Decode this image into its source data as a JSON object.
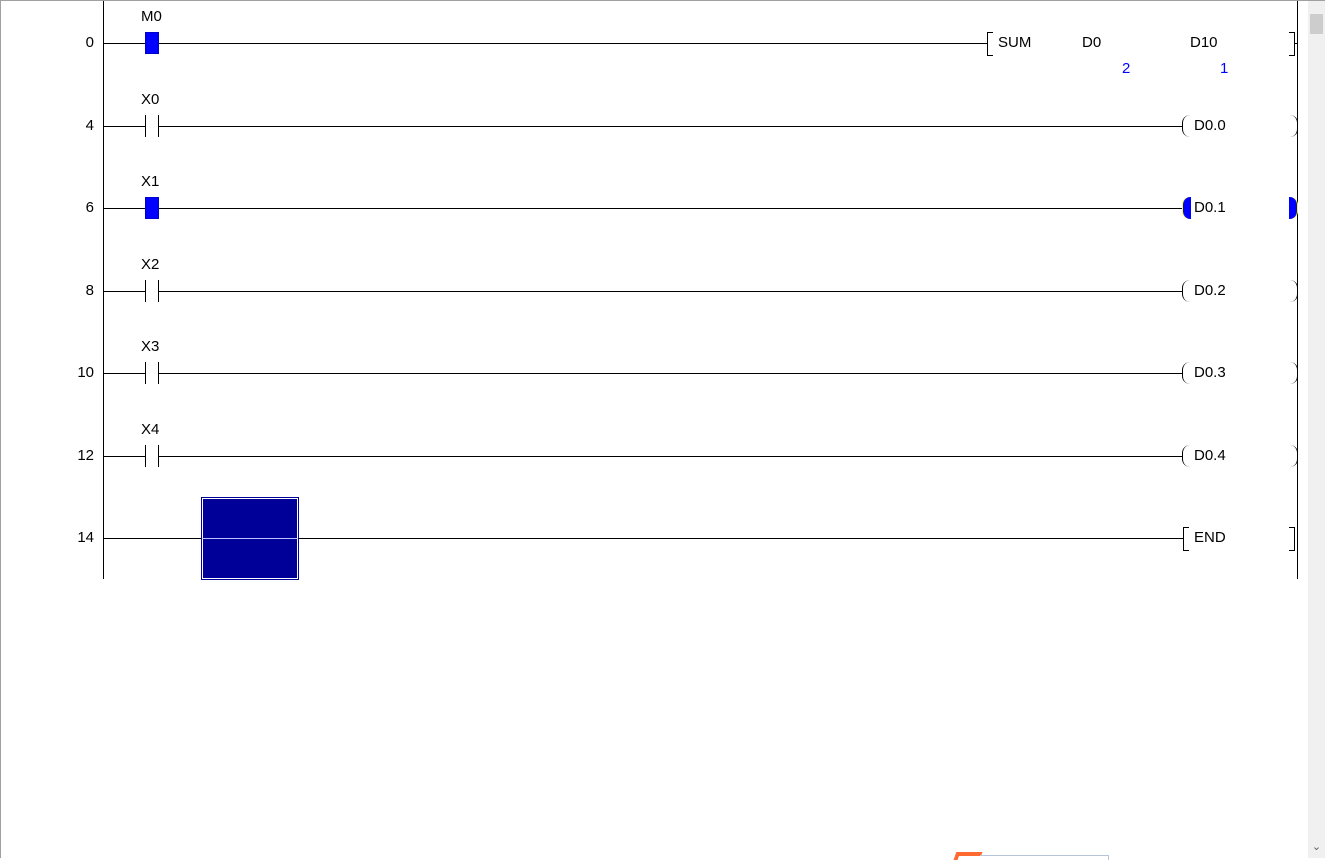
{
  "colors": {
    "contact_on": "#0000ff",
    "value_text": "#0000ff",
    "cursor": "#000099",
    "coil_on_highlight": "#0000ff",
    "coil_on_paren": "#ffff00"
  },
  "rungs": [
    {
      "step": "0",
      "contact": "M0",
      "contact_state": "on",
      "output": {
        "type": "instruction",
        "open": "[",
        "name": "SUM",
        "operands": [
          "D0",
          "D10"
        ],
        "values": [
          "2",
          "1"
        ],
        "close": "]"
      }
    },
    {
      "step": "4",
      "contact": "X0",
      "contact_state": "off",
      "output": {
        "type": "coil",
        "name": "D0.0",
        "state": "off"
      }
    },
    {
      "step": "6",
      "contact": "X1",
      "contact_state": "on",
      "output": {
        "type": "coil",
        "name": "D0.1",
        "state": "on"
      }
    },
    {
      "step": "8",
      "contact": "X2",
      "contact_state": "off",
      "output": {
        "type": "coil",
        "name": "D0.2",
        "state": "off"
      }
    },
    {
      "step": "10",
      "contact": "X3",
      "contact_state": "off",
      "output": {
        "type": "coil",
        "name": "D0.3",
        "state": "off"
      }
    },
    {
      "step": "12",
      "contact": "X4",
      "contact_state": "off",
      "output": {
        "type": "coil",
        "name": "D0.4",
        "state": "off"
      }
    },
    {
      "step": "14",
      "contact": "",
      "contact_state": "none",
      "output": {
        "type": "end",
        "name": "END"
      }
    }
  ],
  "scrollbar": {
    "down_icon": "chevron-down-icon"
  }
}
